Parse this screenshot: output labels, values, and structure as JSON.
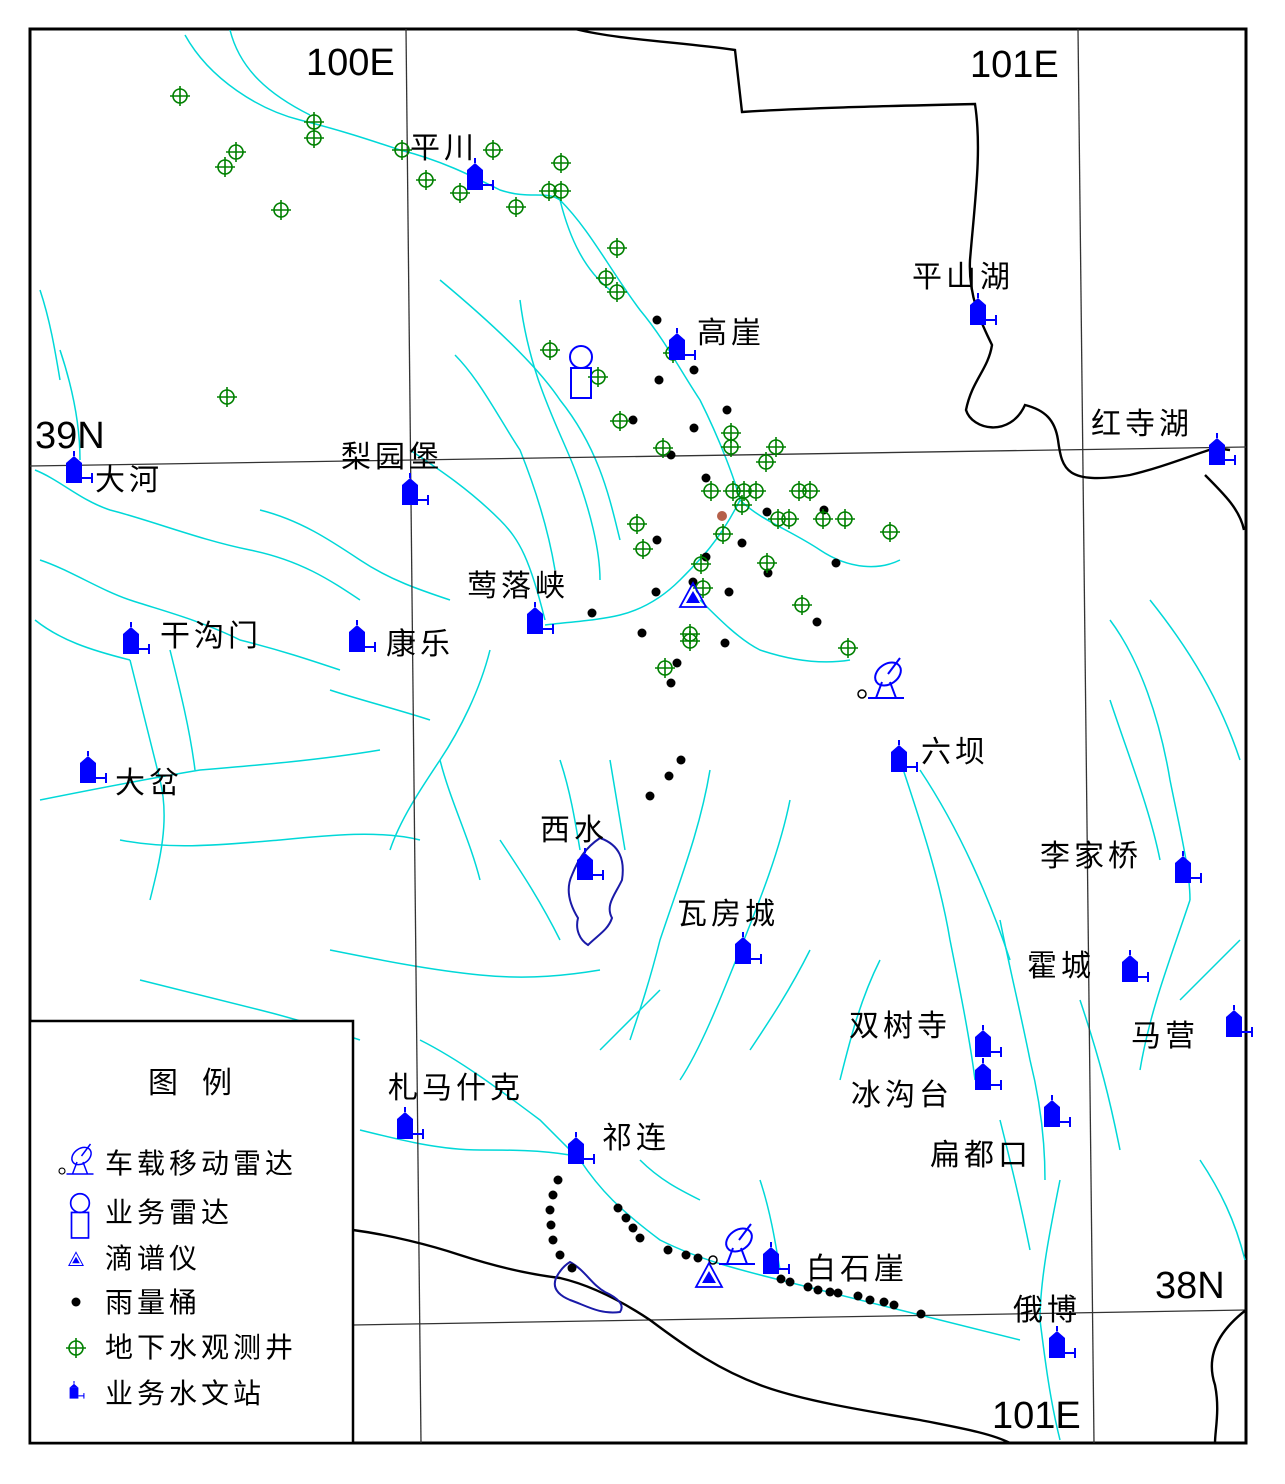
{
  "coords": {
    "lon_100": "100E",
    "lon_101_top": "101E",
    "lon_101_bottom": "101E",
    "lat_39": "39N",
    "lat_38": "38N"
  },
  "stations": {
    "pingchuan": "平川",
    "gaoya": "高崖",
    "pingshanhu": "平山湖",
    "hongsihu": "红寺湖",
    "dahe": "大河",
    "liyuanbao": "梨园堡",
    "yingluoxia": "莺落峡",
    "gangoumen": "干沟门",
    "kangle": "康乐",
    "liuba": "六坝",
    "dapen": "大岔",
    "xishui": "西水",
    "lijiaqiao": "李家桥",
    "wafangcheng": "瓦房城",
    "huocheng": "霍城",
    "shuangshusi": "双树寺",
    "maying": "马营",
    "zhamashike": "札马什克",
    "binggoutai": "冰沟台",
    "qilian": "祁连",
    "biandukou": "扁都口",
    "baishiya": "白石崖",
    "ebo": "俄博"
  },
  "legend": {
    "title": "图例",
    "items": [
      {
        "icon": "mobile-radar-icon",
        "label": "车载移动雷达"
      },
      {
        "icon": "operational-radar-icon",
        "label": "业务雷达"
      },
      {
        "icon": "disdrometer-icon",
        "label": "滴谱仪"
      },
      {
        "icon": "rain-gauge-icon",
        "label": "雨量桶"
      },
      {
        "icon": "groundwater-well-icon",
        "label": "地下水观测井"
      },
      {
        "icon": "hydrological-station-icon",
        "label": "业务水文站"
      }
    ]
  },
  "colors": {
    "river": "#00d8d8",
    "grid": "#333333",
    "boundary": "#000000",
    "station": "#0000ff",
    "well": "#008000",
    "gauge": "#000000",
    "basin": "#1a1aa8",
    "highlight": "#b5604a"
  }
}
